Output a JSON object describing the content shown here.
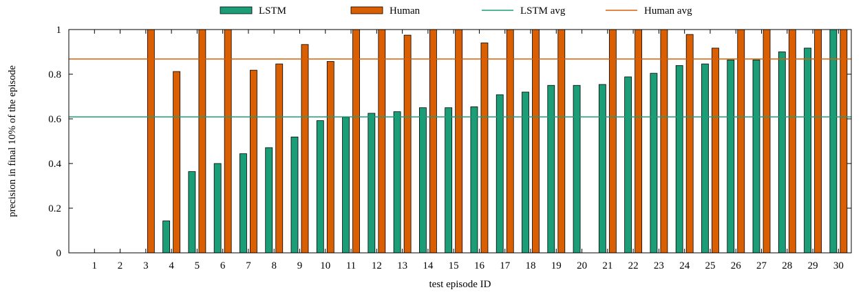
{
  "chart_data": {
    "type": "bar",
    "xlabel": "test episode ID",
    "ylabel": "precision in final 10% of the episode",
    "ylim": [
      0,
      1
    ],
    "yticks": [
      "0",
      "0.2",
      "0.4",
      "0.6",
      "0.8",
      "1"
    ],
    "categories": [
      "1",
      "2",
      "3",
      "4",
      "5",
      "6",
      "7",
      "8",
      "9",
      "10",
      "11",
      "12",
      "13",
      "14",
      "15",
      "16",
      "17",
      "18",
      "19",
      "20",
      "21",
      "22",
      "23",
      "24",
      "25",
      "26",
      "27",
      "28",
      "29",
      "30"
    ],
    "series": [
      {
        "name": "LSTM",
        "color": "#1b9e77",
        "values": [
          0,
          0,
          0,
          0.143,
          0.364,
          0.4,
          0.444,
          0.471,
          0.519,
          0.592,
          0.607,
          0.625,
          0.632,
          0.65,
          0.65,
          0.654,
          0.708,
          0.72,
          0.75,
          0.75,
          0.754,
          0.788,
          0.804,
          0.839,
          0.846,
          0.864,
          0.864,
          0.9,
          0.917,
          1.0
        ]
      },
      {
        "name": "Human",
        "color": "#d95f02",
        "values": [
          0,
          0,
          1.0,
          0.812,
          1.0,
          1.0,
          0.818,
          0.846,
          0.933,
          0.857,
          1.0,
          1.0,
          0.975,
          1.0,
          1.0,
          0.94,
          1.0,
          1.0,
          1.0,
          0,
          1.0,
          1.0,
          1.0,
          0.978,
          0.917,
          1.0,
          1.0,
          1.0,
          1.0,
          1.0
        ]
      }
    ],
    "reference_lines": [
      {
        "name": "LSTM avg",
        "value": 0.609,
        "color": "#1b9e77"
      },
      {
        "name": "Human avg",
        "value": 0.868,
        "color": "#d95f02"
      }
    ],
    "legend_position": "top",
    "grid": false
  }
}
